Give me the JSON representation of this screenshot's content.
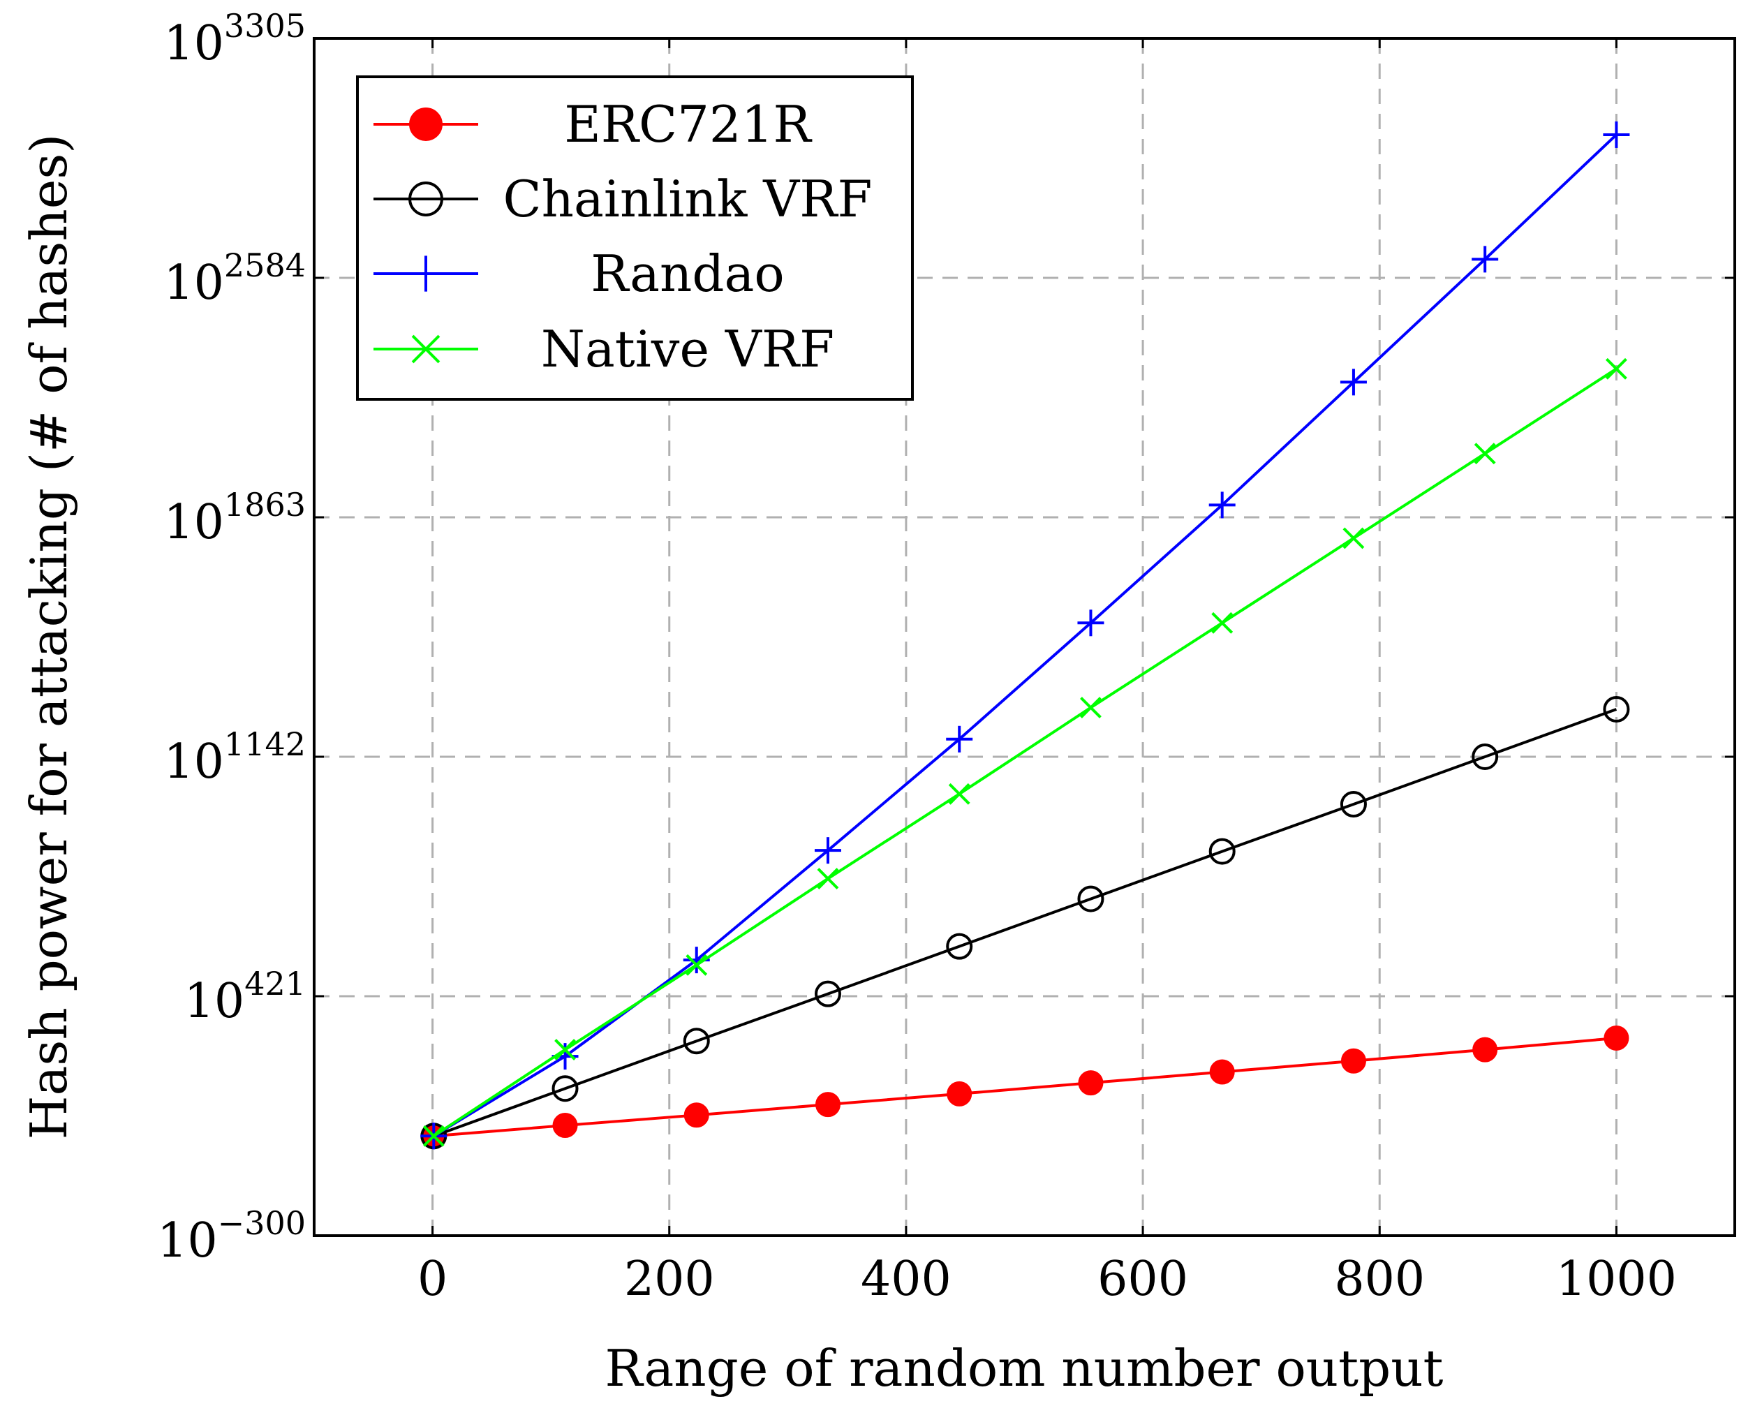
{
  "chart_data": {
    "type": "line",
    "title": "",
    "xlabel": "Range of random number output",
    "ylabel": "Hash power for attacking (# of hashes)",
    "xlim": [
      -100,
      1100
    ],
    "ylim": [
      -300,
      3305
    ],
    "yscale": "log10 (values are exponents)",
    "grid": true,
    "legend_position": "top-left",
    "x_ticks": [
      0,
      200,
      400,
      600,
      800,
      1000
    ],
    "y_ticks": [
      {
        "base": "10",
        "exp": "−300",
        "value": -300
      },
      {
        "base": "10",
        "exp": "421",
        "value": 421
      },
      {
        "base": "10",
        "exp": "1142",
        "value": 1142
      },
      {
        "base": "10",
        "exp": "1863",
        "value": 1863
      },
      {
        "base": "10",
        "exp": "2584",
        "value": 2584
      },
      {
        "base": "10",
        "exp": "3305",
        "value": 3305
      }
    ],
    "x": [
      1,
      112,
      223,
      334,
      445,
      556,
      667,
      778,
      889,
      1000
    ],
    "series": [
      {
        "name": "ERC721R",
        "color": "#ff0000",
        "marker": "filled-circle",
        "values": [
          0,
          32,
          63,
          95,
          127,
          160,
          193,
          226,
          260,
          295
        ]
      },
      {
        "name": "Chainlink VRF",
        "color": "#000000",
        "marker": "open-circle",
        "values": [
          0,
          143,
          286,
          428,
          571,
          714,
          857,
          999,
          1142,
          1285
        ]
      },
      {
        "name": "Randao",
        "color": "#0000ff",
        "marker": "plus",
        "values": [
          0,
          240,
          530,
          860,
          1195,
          1545,
          1900,
          2270,
          2640,
          3015
        ]
      },
      {
        "name": "Native VRF",
        "color": "#00ff00",
        "marker": "cross",
        "values": [
          0,
          260,
          515,
          775,
          1030,
          1290,
          1545,
          1800,
          2055,
          2310
        ]
      }
    ]
  }
}
